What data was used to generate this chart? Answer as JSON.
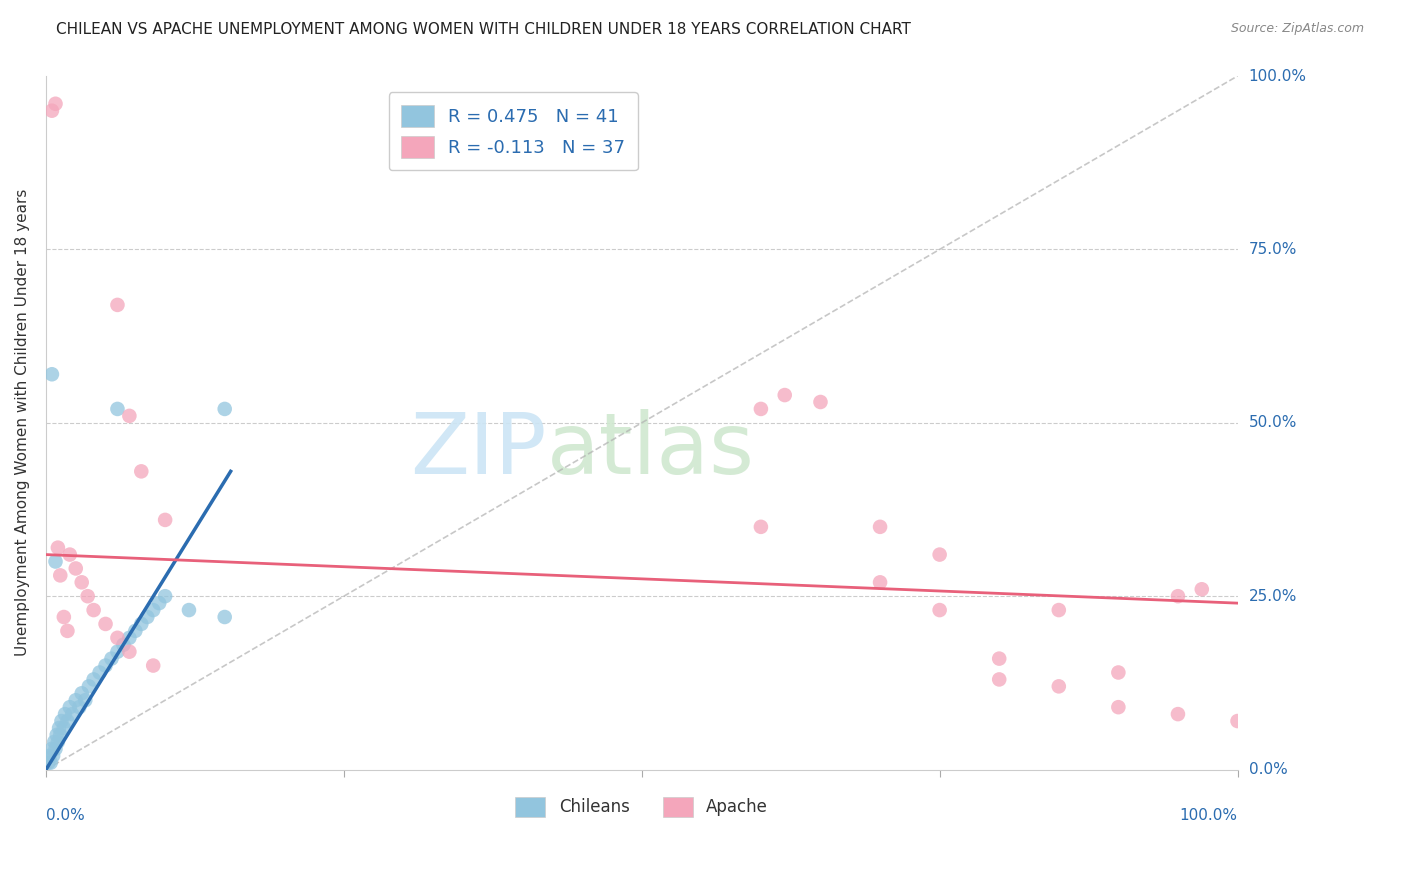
{
  "title": "CHILEAN VS APACHE UNEMPLOYMENT AMONG WOMEN WITH CHILDREN UNDER 18 YEARS CORRELATION CHART",
  "source": "Source: ZipAtlas.com",
  "ylabel": "Unemployment Among Women with Children Under 18 years",
  "legend_blue_label": "R = 0.475   N = 41",
  "legend_pink_label": "R = -0.113   N = 37",
  "legend_bottom_blue": "Chileans",
  "legend_bottom_pink": "Apache",
  "blue_color": "#92c5de",
  "pink_color": "#f4a6bb",
  "blue_line_color": "#2b6cb0",
  "pink_line_color": "#e8607a",
  "legend_r_color": "#2b6cb0",
  "right_label_color": "#2b6cb0",
  "xlim": [
    0.0,
    1.0
  ],
  "ylim": [
    0.0,
    1.0
  ],
  "ytick_labels": [
    "0.0%",
    "25.0%",
    "50.0%",
    "75.0%",
    "100.0%"
  ],
  "ytick_values": [
    0.0,
    0.25,
    0.5,
    0.75,
    1.0
  ],
  "blue_scatter_x": [
    0.002,
    0.003,
    0.004,
    0.005,
    0.006,
    0.007,
    0.008,
    0.009,
    0.01,
    0.011,
    0.012,
    0.013,
    0.015,
    0.016,
    0.018,
    0.02,
    0.022,
    0.025,
    0.028,
    0.03,
    0.033,
    0.036,
    0.04,
    0.045,
    0.05,
    0.055,
    0.06,
    0.065,
    0.07,
    0.075,
    0.08,
    0.085,
    0.09,
    0.095,
    0.1,
    0.12,
    0.15,
    0.005,
    0.008,
    0.15,
    0.06
  ],
  "blue_scatter_y": [
    0.01,
    0.02,
    0.01,
    0.03,
    0.02,
    0.04,
    0.03,
    0.05,
    0.04,
    0.06,
    0.05,
    0.07,
    0.06,
    0.08,
    0.07,
    0.09,
    0.08,
    0.1,
    0.09,
    0.11,
    0.1,
    0.12,
    0.13,
    0.14,
    0.15,
    0.16,
    0.17,
    0.18,
    0.19,
    0.2,
    0.21,
    0.22,
    0.23,
    0.24,
    0.25,
    0.23,
    0.22,
    0.57,
    0.3,
    0.52,
    0.52
  ],
  "pink_scatter_x": [
    0.005,
    0.008,
    0.01,
    0.012,
    0.015,
    0.018,
    0.02,
    0.025,
    0.03,
    0.035,
    0.04,
    0.05,
    0.06,
    0.07,
    0.08,
    0.09,
    0.1,
    0.06,
    0.07,
    0.6,
    0.62,
    0.65,
    0.7,
    0.75,
    0.8,
    0.85,
    0.9,
    0.95,
    0.97,
    0.6,
    0.7,
    0.75,
    0.8,
    0.85,
    0.9,
    0.95,
    1.0
  ],
  "pink_scatter_y": [
    0.95,
    0.96,
    0.32,
    0.28,
    0.22,
    0.2,
    0.31,
    0.29,
    0.27,
    0.25,
    0.23,
    0.21,
    0.19,
    0.17,
    0.43,
    0.15,
    0.36,
    0.67,
    0.51,
    0.52,
    0.54,
    0.53,
    0.35,
    0.31,
    0.13,
    0.23,
    0.14,
    0.25,
    0.26,
    0.35,
    0.27,
    0.23,
    0.16,
    0.12,
    0.09,
    0.08,
    0.07
  ],
  "blue_trend_x": [
    0.0,
    0.155
  ],
  "blue_trend_y": [
    0.0,
    0.43
  ],
  "pink_trend_x": [
    0.0,
    1.0
  ],
  "pink_trend_y": [
    0.31,
    0.24
  ],
  "diag_line_x": [
    0.0,
    1.0
  ],
  "diag_line_y": [
    0.0,
    1.0
  ]
}
